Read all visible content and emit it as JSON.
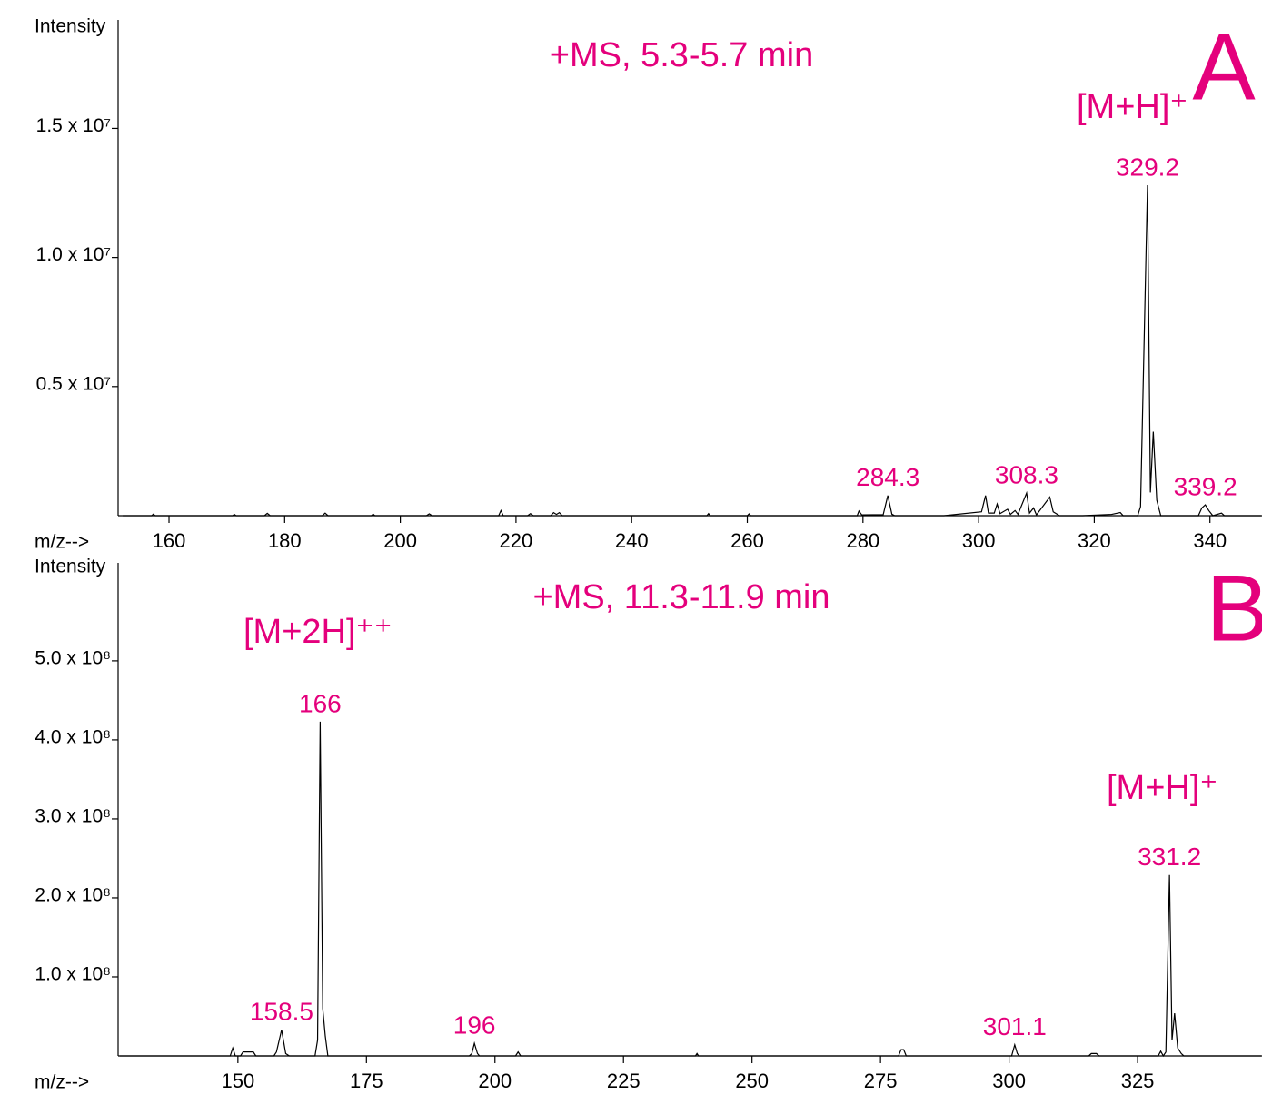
{
  "chart_data": [
    {
      "type": "line",
      "title": "+MS, 5.3-5.7 min",
      "panel_label": "A",
      "annotations": [
        "[M+H]⁺"
      ],
      "xlabel": "m/z-->",
      "ylabel": "Intensity",
      "color": "#000000",
      "label_color": "#e4007c",
      "xlim": [
        151.2,
        349.0
      ],
      "xticks": [
        160,
        180,
        200,
        220,
        240,
        260,
        280,
        300,
        320,
        340
      ],
      "ylim": [
        0,
        19200000
      ],
      "yticks": [
        {
          "value": 5000000,
          "label": "0.5 x 10⁷"
        },
        {
          "value": 10000000,
          "label": "1.0 x 10⁷"
        },
        {
          "value": 15000000,
          "label": "1.5 x 10⁷"
        }
      ],
      "peak_labels": [
        284.3,
        308.3,
        329.2,
        339.2
      ],
      "x": [
        152,
        157,
        157.3,
        157.6,
        171,
        171.3,
        171.6,
        176.5,
        177,
        177.5,
        186.5,
        187,
        187.5,
        195,
        195.3,
        195.6,
        204.5,
        205,
        205.5,
        217,
        217.4,
        217.8,
        222,
        222.5,
        223,
        226,
        226.5,
        227,
        227.5,
        228,
        253,
        253.3,
        253.6,
        260,
        260.3,
        260.6,
        279,
        279.3,
        279.8,
        283.5,
        284.3,
        285,
        285.5,
        294,
        300.5,
        301.2,
        301.7,
        302.7,
        303.2,
        303.7,
        305,
        305.5,
        306.3,
        306.8,
        308.3,
        308.8,
        309.5,
        310,
        312.3,
        312.9,
        314,
        318,
        323,
        324.5,
        325,
        327.5,
        328,
        329.2,
        329.7,
        330.2,
        330.8,
        331.5,
        338,
        338.6,
        339.2,
        339.8,
        340.5,
        342,
        342.5,
        348.8
      ],
      "values": [
        0,
        0,
        60000,
        0,
        0,
        50000,
        0,
        0,
        90000,
        0,
        0,
        100000,
        0,
        0,
        60000,
        0,
        0,
        70000,
        0,
        0,
        200000,
        0,
        0,
        80000,
        0,
        0,
        120000,
        50000,
        120000,
        0,
        0,
        80000,
        0,
        0,
        70000,
        0,
        0,
        180000,
        30000,
        40000,
        780000,
        60000,
        0,
        0,
        150000,
        780000,
        100000,
        100000,
        450000,
        80000,
        250000,
        50000,
        200000,
        50000,
        880000,
        100000,
        300000,
        30000,
        720000,
        150000,
        0,
        0,
        50000,
        120000,
        0,
        0,
        350000,
        12800000,
        900000,
        3250000,
        600000,
        0,
        0,
        300000,
        420000,
        200000,
        0,
        100000,
        0,
        0
      ]
    },
    {
      "type": "line",
      "title": "+MS, 11.3-11.9 min",
      "panel_label": "B",
      "annotations": [
        "[M+2H]⁺⁺",
        "[M+H]⁺"
      ],
      "xlabel": "m/z-->",
      "ylabel": "Intensity",
      "color": "#000000",
      "label_color": "#e4007c",
      "xlim": [
        126.7,
        349.2
      ],
      "xticks": [
        150,
        175,
        200,
        225,
        250,
        275,
        300,
        325
      ],
      "ylim": [
        0,
        624000000
      ],
      "yticks": [
        {
          "value": 100000000,
          "label": "1.0 x 10⁸"
        },
        {
          "value": 200000000,
          "label": "2.0 x 10⁸"
        },
        {
          "value": 300000000,
          "label": "3.0 x 10⁸"
        },
        {
          "value": 400000000,
          "label": "4.0 x 10⁸"
        },
        {
          "value": 500000000,
          "label": "5.0 x 10⁸"
        }
      ],
      "peak_labels": [
        158.5,
        166.0,
        196.0,
        301.1,
        331.2
      ],
      "x": [
        127,
        148.5,
        149,
        149.5,
        150.5,
        151,
        153,
        153.5,
        157,
        157.5,
        158.5,
        159.3,
        160,
        165,
        165.5,
        166.0,
        166.5,
        167,
        167.5,
        195,
        195.5,
        196.0,
        196.6,
        197,
        204,
        204.5,
        205,
        239,
        239.3,
        239.6,
        278.5,
        279,
        279.5,
        280,
        300.5,
        301.1,
        301.6,
        302,
        315.5,
        316,
        317,
        317.5,
        329,
        329.5,
        330,
        330.5,
        331.2,
        331.7,
        332.2,
        332.8,
        333.5,
        334,
        349
      ],
      "values": [
        0,
        0,
        10000000,
        0,
        0,
        5000000,
        5000000,
        0,
        0,
        5000000,
        33000000,
        3000000,
        0,
        0,
        20000000,
        423000000,
        60000000,
        25000000,
        0,
        0,
        3000000,
        16000000,
        3000000,
        0,
        0,
        5000000,
        0,
        0,
        3000000,
        0,
        0,
        8000000,
        8000000,
        0,
        0,
        14000000,
        3000000,
        0,
        0,
        3000000,
        3000000,
        0,
        0,
        6000000,
        0,
        5000000,
        229000000,
        20000000,
        54000000,
        10000000,
        3000000,
        0,
        0
      ]
    }
  ]
}
